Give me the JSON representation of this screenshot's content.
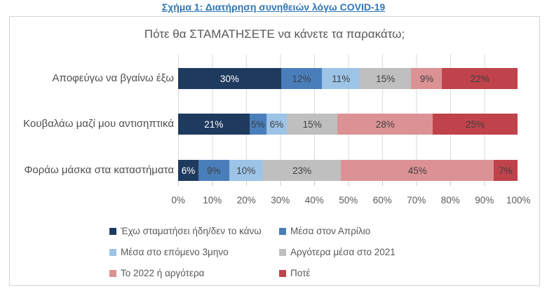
{
  "figure_caption": "Σχήμα 1: Διατήρηση συνηθειών λόγω COVID-19",
  "chart_data": {
    "type": "bar",
    "orientation": "horizontal",
    "stacked": true,
    "title": "Πότε θα ΣΤΑΜΑΤΗΣΕΤΕ να κάνετε τα παρακάτω;",
    "categories": [
      "Αποφεύγω να βγαίνω έξω",
      "Κουβαλάω μαζί μου αντισηπτικά",
      "Φοράω μάσκα στα καταστήματα"
    ],
    "series": [
      {
        "name": "Έχω σταματήσει ήδη/δεν το κάνω",
        "color": "#1F3A5F",
        "label_color": "#FFFFFF",
        "values": [
          30,
          21,
          6
        ]
      },
      {
        "name": "Μέσα στον Απρίλιο",
        "color": "#4A7EBB",
        "values": [
          12,
          5,
          9
        ]
      },
      {
        "name": "Μέσα στο επόμενο 3μηνο",
        "color": "#9DC3E6",
        "values": [
          11,
          6,
          10
        ]
      },
      {
        "name": "Αργότερα μέσα στο 2021",
        "color": "#BFBFBF",
        "values": [
          15,
          15,
          23
        ]
      },
      {
        "name": "Το 2022 ή αργότερα",
        "color": "#DC9295",
        "values": [
          9,
          28,
          45
        ]
      },
      {
        "name": "Ποτέ",
        "color": "#C0434C",
        "values": [
          22,
          25,
          7
        ]
      }
    ],
    "x_ticks": [
      "0%",
      "10%",
      "20%",
      "30%",
      "40%",
      "50%",
      "60%",
      "70%",
      "80%",
      "90%",
      "100%"
    ],
    "xlim": [
      0,
      100
    ],
    "value_suffix": "%",
    "grid": true,
    "legend_position": "bottom"
  }
}
